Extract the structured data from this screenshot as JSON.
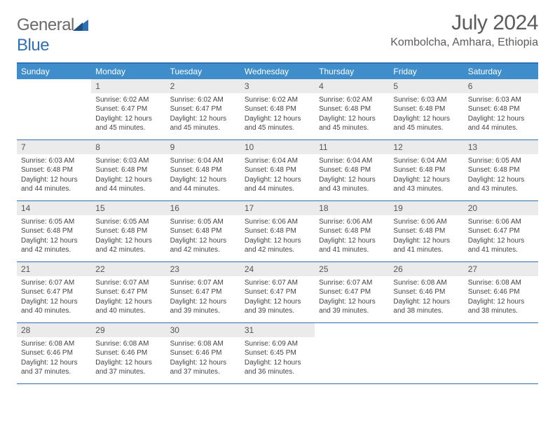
{
  "logo": {
    "text_gray": "General",
    "text_blue": "Blue"
  },
  "title": "July 2024",
  "subtitle": "Kombolcha, Amhara, Ethiopia",
  "colors": {
    "header_band": "#3f8ecb",
    "border_blue": "#2f6fb3",
    "daynum_bg": "#ebebeb",
    "text_gray": "#5c5c5c",
    "body_text": "#444444",
    "logo_blue": "#2f6fb3",
    "logo_gray": "#6a6a6a",
    "background": "#ffffff"
  },
  "day_labels": [
    "Sunday",
    "Monday",
    "Tuesday",
    "Wednesday",
    "Thursday",
    "Friday",
    "Saturday"
  ],
  "weeks": [
    [
      {
        "day": "",
        "sunrise": "",
        "sunset": "",
        "daylight": ""
      },
      {
        "day": "1",
        "sunrise": "Sunrise: 6:02 AM",
        "sunset": "Sunset: 6:47 PM",
        "daylight": "Daylight: 12 hours and 45 minutes."
      },
      {
        "day": "2",
        "sunrise": "Sunrise: 6:02 AM",
        "sunset": "Sunset: 6:47 PM",
        "daylight": "Daylight: 12 hours and 45 minutes."
      },
      {
        "day": "3",
        "sunrise": "Sunrise: 6:02 AM",
        "sunset": "Sunset: 6:48 PM",
        "daylight": "Daylight: 12 hours and 45 minutes."
      },
      {
        "day": "4",
        "sunrise": "Sunrise: 6:02 AM",
        "sunset": "Sunset: 6:48 PM",
        "daylight": "Daylight: 12 hours and 45 minutes."
      },
      {
        "day": "5",
        "sunrise": "Sunrise: 6:03 AM",
        "sunset": "Sunset: 6:48 PM",
        "daylight": "Daylight: 12 hours and 45 minutes."
      },
      {
        "day": "6",
        "sunrise": "Sunrise: 6:03 AM",
        "sunset": "Sunset: 6:48 PM",
        "daylight": "Daylight: 12 hours and 44 minutes."
      }
    ],
    [
      {
        "day": "7",
        "sunrise": "Sunrise: 6:03 AM",
        "sunset": "Sunset: 6:48 PM",
        "daylight": "Daylight: 12 hours and 44 minutes."
      },
      {
        "day": "8",
        "sunrise": "Sunrise: 6:03 AM",
        "sunset": "Sunset: 6:48 PM",
        "daylight": "Daylight: 12 hours and 44 minutes."
      },
      {
        "day": "9",
        "sunrise": "Sunrise: 6:04 AM",
        "sunset": "Sunset: 6:48 PM",
        "daylight": "Daylight: 12 hours and 44 minutes."
      },
      {
        "day": "10",
        "sunrise": "Sunrise: 6:04 AM",
        "sunset": "Sunset: 6:48 PM",
        "daylight": "Daylight: 12 hours and 44 minutes."
      },
      {
        "day": "11",
        "sunrise": "Sunrise: 6:04 AM",
        "sunset": "Sunset: 6:48 PM",
        "daylight": "Daylight: 12 hours and 43 minutes."
      },
      {
        "day": "12",
        "sunrise": "Sunrise: 6:04 AM",
        "sunset": "Sunset: 6:48 PM",
        "daylight": "Daylight: 12 hours and 43 minutes."
      },
      {
        "day": "13",
        "sunrise": "Sunrise: 6:05 AM",
        "sunset": "Sunset: 6:48 PM",
        "daylight": "Daylight: 12 hours and 43 minutes."
      }
    ],
    [
      {
        "day": "14",
        "sunrise": "Sunrise: 6:05 AM",
        "sunset": "Sunset: 6:48 PM",
        "daylight": "Daylight: 12 hours and 42 minutes."
      },
      {
        "day": "15",
        "sunrise": "Sunrise: 6:05 AM",
        "sunset": "Sunset: 6:48 PM",
        "daylight": "Daylight: 12 hours and 42 minutes."
      },
      {
        "day": "16",
        "sunrise": "Sunrise: 6:05 AM",
        "sunset": "Sunset: 6:48 PM",
        "daylight": "Daylight: 12 hours and 42 minutes."
      },
      {
        "day": "17",
        "sunrise": "Sunrise: 6:06 AM",
        "sunset": "Sunset: 6:48 PM",
        "daylight": "Daylight: 12 hours and 42 minutes."
      },
      {
        "day": "18",
        "sunrise": "Sunrise: 6:06 AM",
        "sunset": "Sunset: 6:48 PM",
        "daylight": "Daylight: 12 hours and 41 minutes."
      },
      {
        "day": "19",
        "sunrise": "Sunrise: 6:06 AM",
        "sunset": "Sunset: 6:48 PM",
        "daylight": "Daylight: 12 hours and 41 minutes."
      },
      {
        "day": "20",
        "sunrise": "Sunrise: 6:06 AM",
        "sunset": "Sunset: 6:47 PM",
        "daylight": "Daylight: 12 hours and 41 minutes."
      }
    ],
    [
      {
        "day": "21",
        "sunrise": "Sunrise: 6:07 AM",
        "sunset": "Sunset: 6:47 PM",
        "daylight": "Daylight: 12 hours and 40 minutes."
      },
      {
        "day": "22",
        "sunrise": "Sunrise: 6:07 AM",
        "sunset": "Sunset: 6:47 PM",
        "daylight": "Daylight: 12 hours and 40 minutes."
      },
      {
        "day": "23",
        "sunrise": "Sunrise: 6:07 AM",
        "sunset": "Sunset: 6:47 PM",
        "daylight": "Daylight: 12 hours and 39 minutes."
      },
      {
        "day": "24",
        "sunrise": "Sunrise: 6:07 AM",
        "sunset": "Sunset: 6:47 PM",
        "daylight": "Daylight: 12 hours and 39 minutes."
      },
      {
        "day": "25",
        "sunrise": "Sunrise: 6:07 AM",
        "sunset": "Sunset: 6:47 PM",
        "daylight": "Daylight: 12 hours and 39 minutes."
      },
      {
        "day": "26",
        "sunrise": "Sunrise: 6:08 AM",
        "sunset": "Sunset: 6:46 PM",
        "daylight": "Daylight: 12 hours and 38 minutes."
      },
      {
        "day": "27",
        "sunrise": "Sunrise: 6:08 AM",
        "sunset": "Sunset: 6:46 PM",
        "daylight": "Daylight: 12 hours and 38 minutes."
      }
    ],
    [
      {
        "day": "28",
        "sunrise": "Sunrise: 6:08 AM",
        "sunset": "Sunset: 6:46 PM",
        "daylight": "Daylight: 12 hours and 37 minutes."
      },
      {
        "day": "29",
        "sunrise": "Sunrise: 6:08 AM",
        "sunset": "Sunset: 6:46 PM",
        "daylight": "Daylight: 12 hours and 37 minutes."
      },
      {
        "day": "30",
        "sunrise": "Sunrise: 6:08 AM",
        "sunset": "Sunset: 6:46 PM",
        "daylight": "Daylight: 12 hours and 37 minutes."
      },
      {
        "day": "31",
        "sunrise": "Sunrise: 6:09 AM",
        "sunset": "Sunset: 6:45 PM",
        "daylight": "Daylight: 12 hours and 36 minutes."
      },
      {
        "day": "",
        "sunrise": "",
        "sunset": "",
        "daylight": ""
      },
      {
        "day": "",
        "sunrise": "",
        "sunset": "",
        "daylight": ""
      },
      {
        "day": "",
        "sunrise": "",
        "sunset": "",
        "daylight": ""
      }
    ]
  ]
}
